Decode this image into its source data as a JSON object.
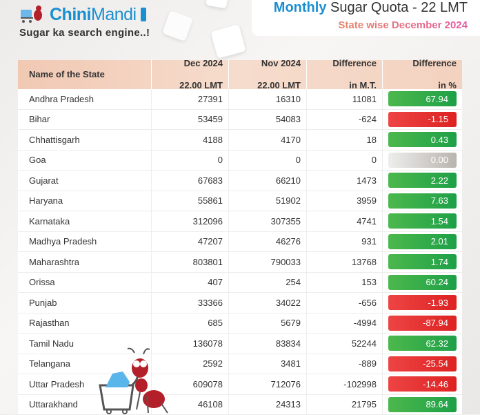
{
  "logo": {
    "brand_bold": "Chini",
    "brand_light": "Mandi",
    "tagline": "Sugar ka search engine..!"
  },
  "title": {
    "highlight": "Monthly",
    "rest": " Sugar Quota - 22 LMT",
    "subtitle": "State wise December 2024"
  },
  "colors": {
    "brand": "#1a8fd0",
    "positive": "#2eaa4a",
    "negative": "#e53333",
    "zero": "#c8c4bf",
    "header": "#f3d2bf"
  },
  "table": {
    "headers": [
      [
        "Name of the State",
        ""
      ],
      [
        "Dec 2024",
        "22.00 LMT"
      ],
      [
        "Nov 2024",
        "22.00 LMT"
      ],
      [
        "Difference",
        "in M.T."
      ],
      [
        "Difference",
        "in %"
      ]
    ],
    "rows": [
      [
        "Andhra Pradesh",
        "27391",
        "16310",
        "11081",
        "67.94"
      ],
      [
        "Bihar",
        "53459",
        "54083",
        "-624",
        "-1.15"
      ],
      [
        "Chhattisgarh",
        "4188",
        "4170",
        "18",
        "0.43"
      ],
      [
        "Goa",
        "0",
        "0",
        "0",
        "0.00"
      ],
      [
        "Gujarat",
        "67683",
        "66210",
        "1473",
        "2.22"
      ],
      [
        "Haryana",
        "55861",
        "51902",
        "3959",
        "7.63"
      ],
      [
        "Karnataka",
        "312096",
        "307355",
        "4741",
        "1.54"
      ],
      [
        "Madhya Pradesh",
        "47207",
        "46276",
        "931",
        "2.01"
      ],
      [
        "Maharashtra",
        "803801",
        "790033",
        "13768",
        "1.74"
      ],
      [
        "Orissa",
        "407",
        "254",
        "153",
        "60.24"
      ],
      [
        "Punjab",
        "33366",
        "34022",
        "-656",
        "-1.93"
      ],
      [
        "Rajasthan",
        "685",
        "5679",
        "-4994",
        "-87.94"
      ],
      [
        "Tamil Nadu",
        "136078",
        "83834",
        "52244",
        "62.32"
      ],
      [
        "Telangana",
        "2592",
        "3481",
        "-889",
        "-25.54"
      ],
      [
        "Uttar Pradesh",
        "609078",
        "712076",
        "-102998",
        "-14.46"
      ],
      [
        "Uttarakhand",
        "46108",
        "24313",
        "21795",
        "89.64"
      ]
    ]
  }
}
